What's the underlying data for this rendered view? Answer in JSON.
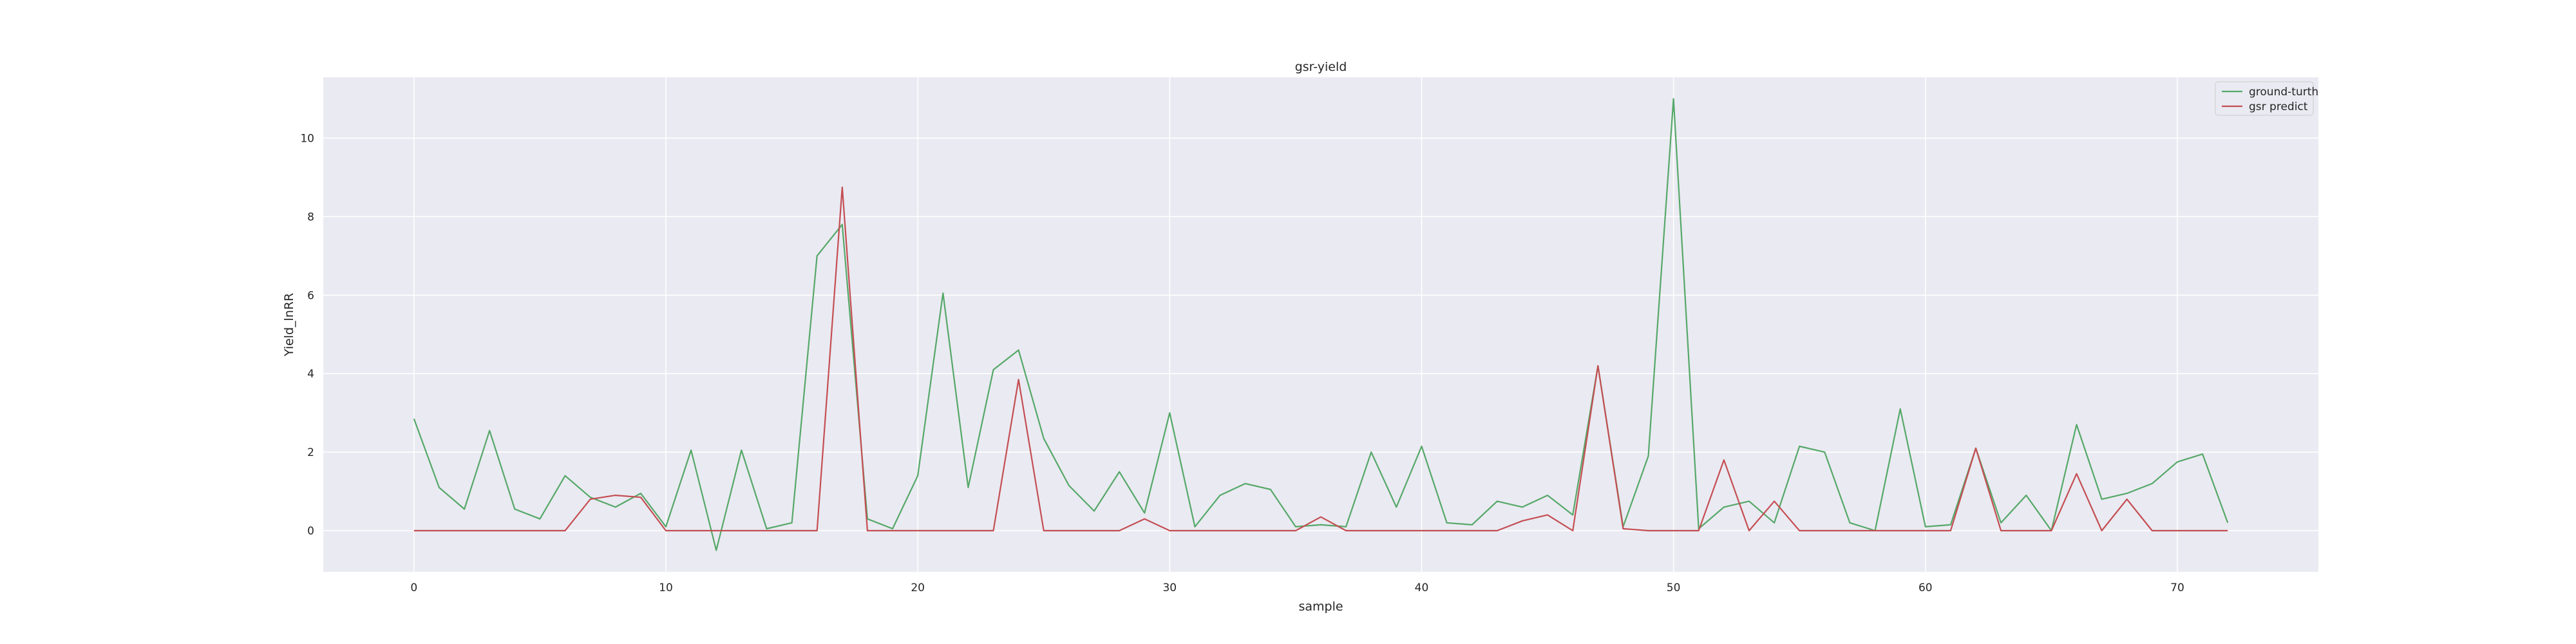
{
  "chart_data": {
    "type": "line",
    "title": "gsr-yield",
    "xlabel": "sample",
    "ylabel": "Yield_lnRR",
    "xlim": [
      -3.6,
      75.6
    ],
    "ylim": [
      -1.05,
      11.55
    ],
    "xticks": [
      0,
      10,
      20,
      30,
      40,
      50,
      60,
      70
    ],
    "yticks": [
      0,
      2,
      4,
      6,
      8,
      10
    ],
    "grid": true,
    "legend_position": "upper right",
    "x": [
      0,
      1,
      2,
      3,
      4,
      5,
      6,
      7,
      8,
      9,
      10,
      11,
      12,
      13,
      14,
      15,
      16,
      17,
      18,
      19,
      20,
      21,
      22,
      23,
      24,
      25,
      26,
      27,
      28,
      29,
      30,
      31,
      32,
      33,
      34,
      35,
      36,
      37,
      38,
      39,
      40,
      41,
      42,
      43,
      44,
      45,
      46,
      47,
      48,
      49,
      50,
      51,
      52,
      53,
      54,
      55,
      56,
      57,
      58,
      59,
      60,
      61,
      62,
      63,
      64,
      65,
      66,
      67,
      68,
      69,
      70,
      71,
      72
    ],
    "series": [
      {
        "name": "ground-turth",
        "color": "#55a868",
        "values": [
          2.85,
          1.1,
          0.55,
          2.55,
          0.55,
          0.3,
          1.4,
          0.85,
          0.6,
          0.95,
          0.1,
          2.05,
          -0.5,
          2.05,
          0.05,
          0.2,
          7.0,
          7.8,
          0.3,
          0.05,
          1.4,
          6.05,
          1.1,
          4.1,
          4.6,
          2.35,
          1.15,
          0.5,
          1.5,
          0.45,
          3.0,
          0.1,
          0.9,
          1.2,
          1.05,
          0.1,
          0.15,
          0.1,
          2.0,
          0.6,
          2.15,
          0.2,
          0.15,
          0.75,
          0.6,
          0.9,
          0.4,
          4.2,
          0.1,
          1.9,
          11.0,
          0.05,
          0.6,
          0.75,
          0.2,
          2.15,
          2.0,
          0.2,
          0.0,
          3.1,
          0.1,
          0.15,
          2.1,
          0.2,
          0.9,
          0.0,
          2.7,
          0.8,
          0.95,
          1.2,
          1.75,
          1.95,
          0.2
        ]
      },
      {
        "name": "gsr predict",
        "color": "#c44e52",
        "values": [
          0,
          0,
          0,
          0,
          0,
          0,
          0,
          0.8,
          0.9,
          0.85,
          0,
          0,
          0,
          0,
          0,
          0,
          0,
          8.75,
          0,
          0,
          0,
          0,
          0,
          0,
          3.85,
          0,
          0,
          0,
          0,
          0.3,
          0,
          0,
          0,
          0,
          0,
          0,
          0.35,
          0,
          0,
          0,
          0,
          0,
          0,
          0,
          0.25,
          0.4,
          0,
          4.2,
          0.05,
          0,
          0,
          0,
          1.8,
          0,
          0.75,
          0,
          0,
          0,
          0,
          0,
          0,
          0,
          2.1,
          0,
          0,
          0,
          1.45,
          0,
          0.8,
          0,
          0,
          0,
          0
        ]
      }
    ]
  }
}
